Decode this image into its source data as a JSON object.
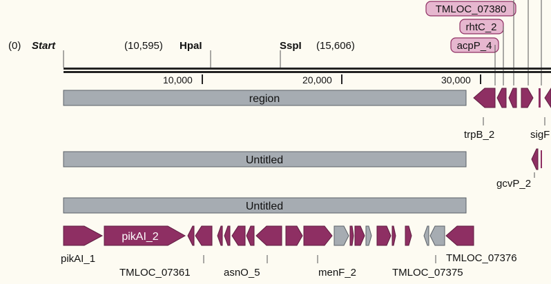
{
  "enzymes": {
    "start_pos": "(0)",
    "start_label": "Start",
    "hpa_pos": "(10,595)",
    "hpa_label": "HpaI",
    "ssp_label": "SspI",
    "ssp_pos": "(15,606)"
  },
  "ruler": {
    "ticks": [
      "10,000",
      "20,000",
      "30,000"
    ]
  },
  "tags": [
    "TMLOC_07380",
    "rhtC_2",
    "acpP_4"
  ],
  "features": {
    "region": "region",
    "untitled1": "Untitled",
    "untitled2": "Untitled",
    "pikAI_2": "pikAI_2"
  },
  "gene_labels": {
    "trpB_2": "trpB_2",
    "sig": "sigF",
    "gcvP_2": "gcvP_2",
    "pikAI_1": "pikAI_1",
    "tmloc_07361": "TMLOC_07361",
    "asnO_5": "asnO_5",
    "menF_2": "menF_2",
    "tmloc_07375": "TMLOC_07375",
    "tmloc_07376": "TMLOC_07376"
  },
  "colors": {
    "gene": "#8e2f63",
    "gene_stroke": "#5e1c40",
    "grey_gene": "#a6acb2",
    "region": "#a6acb2",
    "tag_fill": "#e6b7cf",
    "tag_stroke": "#8e2f63"
  }
}
